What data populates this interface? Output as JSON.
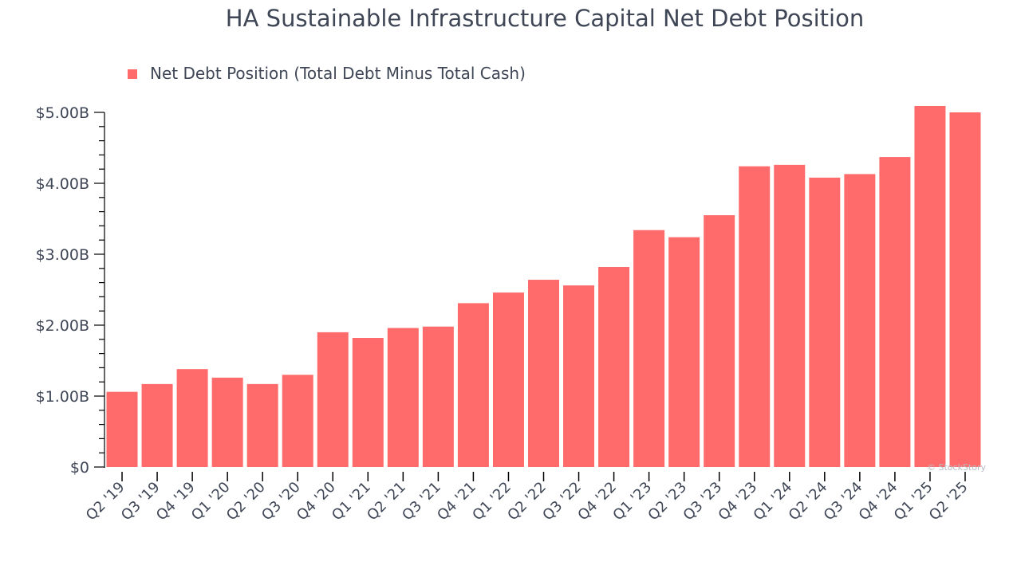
{
  "chart_data": {
    "type": "bar",
    "title": "HA Sustainable Infrastructure Capital Net Debt Position",
    "legend": {
      "label": "Net Debt Position (Total Debt Minus Total Cash)",
      "placement": "top-left"
    },
    "xlabel": "",
    "ylabel": "",
    "ylim": [
      0,
      5.0
    ],
    "yticks": [
      {
        "value": 0,
        "label": "$0"
      },
      {
        "value": 1,
        "label": "$1.00B"
      },
      {
        "value": 2,
        "label": "$2.00B"
      },
      {
        "value": 3,
        "label": "$3.00B"
      },
      {
        "value": 4,
        "label": "$4.00B"
      },
      {
        "value": 5,
        "label": "$5.00B"
      }
    ],
    "categories": [
      "Q2 '19",
      "Q3 '19",
      "Q4 '19",
      "Q1 '20",
      "Q2 '20",
      "Q3 '20",
      "Q4 '20",
      "Q1 '21",
      "Q2 '21",
      "Q3 '21",
      "Q4 '21",
      "Q1 '22",
      "Q2 '22",
      "Q3 '22",
      "Q4 '22",
      "Q1 '23",
      "Q2 '23",
      "Q3 '23",
      "Q4 '23",
      "Q1 '24",
      "Q2 '24",
      "Q3 '24",
      "Q4 '24",
      "Q1 '25",
      "Q2 '25"
    ],
    "values": [
      1.06,
      1.17,
      1.38,
      1.26,
      1.17,
      1.3,
      1.9,
      1.82,
      1.96,
      1.98,
      2.31,
      2.46,
      2.64,
      2.56,
      2.82,
      3.34,
      3.24,
      3.55,
      4.24,
      4.26,
      4.08,
      4.13,
      4.37,
      5.09,
      5.0
    ],
    "units": "USD billions",
    "grid": false,
    "bar_color": "#ff6b6b",
    "watermark": "© StockStory"
  }
}
